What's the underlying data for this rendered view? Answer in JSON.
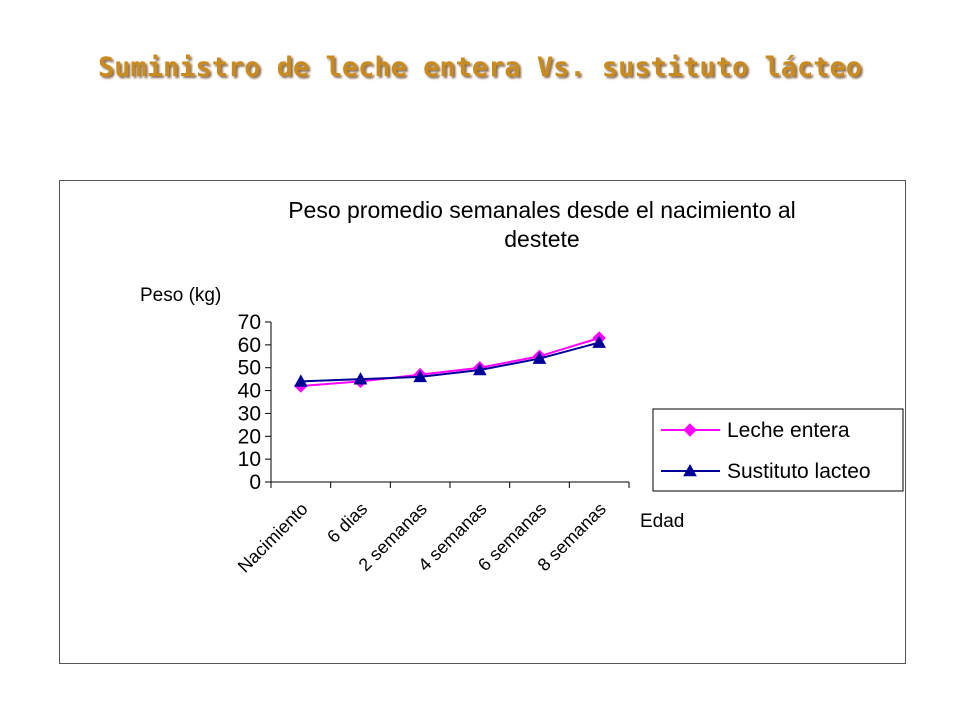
{
  "slide": {
    "title": "Suministro de leche entera Vs. sustituto lácteo"
  },
  "colors": {
    "title": "#c98a1e",
    "series_leche": "#ff00ff",
    "series_sustituto": "#000099"
  },
  "chart_data": {
    "type": "line",
    "title_lines": [
      "Peso promedio semanales desde el nacimiento al",
      "destete"
    ],
    "ylabel": "Peso (kg)",
    "xlabel": "Edad",
    "categories": [
      "Nacimiento",
      "6 dias",
      "2 semanas",
      "4 semanas",
      "6 semanas",
      "8 semanas"
    ],
    "ylim": [
      0,
      70
    ],
    "yticks": [
      0,
      10,
      20,
      30,
      40,
      50,
      60,
      70
    ],
    "series": [
      {
        "name": "Leche entera",
        "marker": "diamond",
        "values": [
          42,
          44,
          47,
          50,
          55,
          63
        ]
      },
      {
        "name": "Sustituto lacteo",
        "marker": "triangle",
        "values": [
          44,
          45,
          46,
          49,
          54,
          61
        ]
      }
    ],
    "legend_position": "right",
    "grid": false
  }
}
